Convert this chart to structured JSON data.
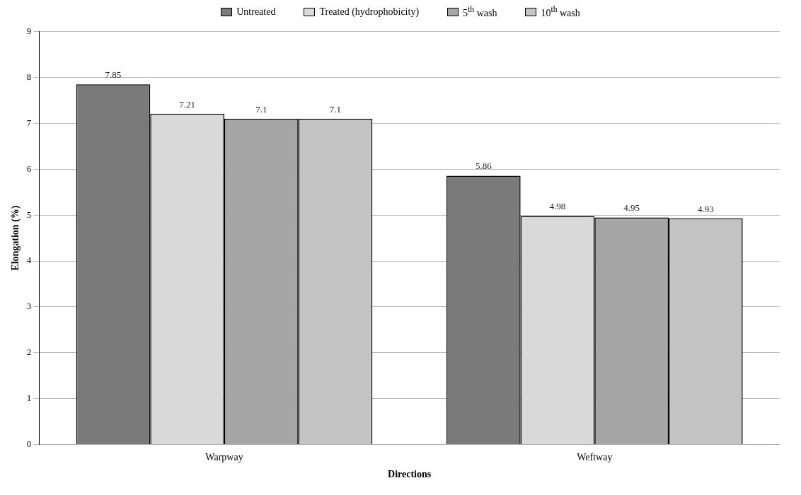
{
  "chart_data": {
    "type": "bar",
    "xlabel": "Directions",
    "ylabel": "Elongation (%)",
    "categories": [
      "Warpway",
      "Weftway"
    ],
    "series": [
      {
        "name": "Untreated",
        "color": "#7a7a7a",
        "values": [
          7.85,
          5.86
        ]
      },
      {
        "name": "Treated (hydrophobicity)",
        "color": "#d9d9d9",
        "values": [
          7.21,
          4.98
        ]
      },
      {
        "name": "5$^{th}$ wash",
        "color": "#a6a6a6",
        "values": [
          7.1,
          4.95
        ]
      },
      {
        "name": "10$^{th}$ wash",
        "color": "#c4c4c4",
        "values": [
          7.1,
          4.93
        ]
      }
    ],
    "ylim": [
      0,
      9
    ],
    "yticks": [
      0,
      1,
      2,
      3,
      4,
      5,
      6,
      7,
      8,
      9
    ],
    "grid": "y",
    "legend": "top",
    "data_labels": true
  }
}
